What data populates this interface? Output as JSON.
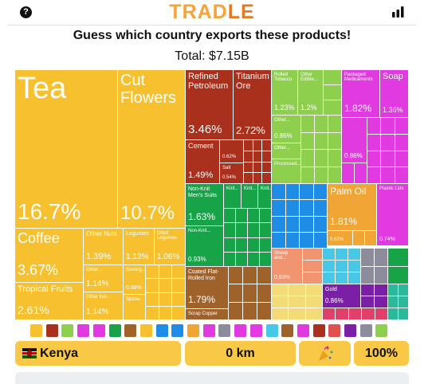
{
  "header": {
    "help": "?",
    "title_a": "TRAD",
    "title_b": "LE"
  },
  "question": "Guess which country exports these products!",
  "total": "Total: $7.15B",
  "tiles": [
    {
      "label": "Tea",
      "share": "16.7%"
    },
    {
      "label": "Cut Flowers",
      "share": "10.7%"
    },
    {
      "label": "Coffee",
      "share": "3.67%"
    },
    {
      "label": "Tropical Fruits",
      "share": "2.61%"
    },
    {
      "label": "Other Nuts",
      "share": "1.39%"
    },
    {
      "label": "Legumes",
      "share": "1.13%"
    },
    {
      "label": "Dried Legumes",
      "share": "1.06%"
    },
    {
      "label": "Other...",
      "share": "1.14%"
    },
    {
      "label": "Sowing...",
      "share": "0.68%"
    },
    {
      "label": "Other live...",
      "share": "1.14%"
    },
    {
      "label": "Spices"
    },
    {
      "label": "Refined Petroleum",
      "share": "3.46%"
    },
    {
      "label": "Titanium Ore",
      "share": "2.72%"
    },
    {
      "label": "Cement",
      "share": "1.49%"
    },
    {
      "share": "0.62%"
    },
    {
      "label": "Salt",
      "share": "0.54%"
    },
    {
      "label": "Non-Knit Men's Suits",
      "share": "1.63%"
    },
    {
      "label": "Non-Knit...",
      "share": "0.93%"
    },
    {
      "label": "Knit..."
    },
    {
      "label": "Knit..."
    },
    {
      "label": "Knit..."
    },
    {
      "label": "Coated Flat-Rolled Iron",
      "share": "1.79%"
    },
    {
      "label": "Scrap Copper"
    },
    {
      "label": "Rolled Tobacco",
      "share": "1.23%"
    },
    {
      "label": "Other Edible...",
      "share": "1.2%"
    },
    {
      "label": "Other...",
      "share": "0.86%"
    },
    {
      "label": "Other..."
    },
    {
      "label": "Processed..."
    },
    {
      "label": "Packaged Medicaments",
      "share": "1.82%"
    },
    {
      "label": "Soap",
      "share": "1.36%"
    },
    {
      "share": "0.86%"
    },
    {
      "label": "Palm Oil",
      "share": "1.81%"
    },
    {
      "share": "0.62%"
    },
    {
      "label": "Plastic Lids",
      "share": "0.74%"
    },
    {
      "label": "Sheep and...",
      "share": "0.93%"
    },
    {
      "label": "Gold",
      "share": "0.86%"
    }
  ],
  "guess": {
    "country": "Kenya",
    "distance": "0 km",
    "proximity": "100%"
  }
}
